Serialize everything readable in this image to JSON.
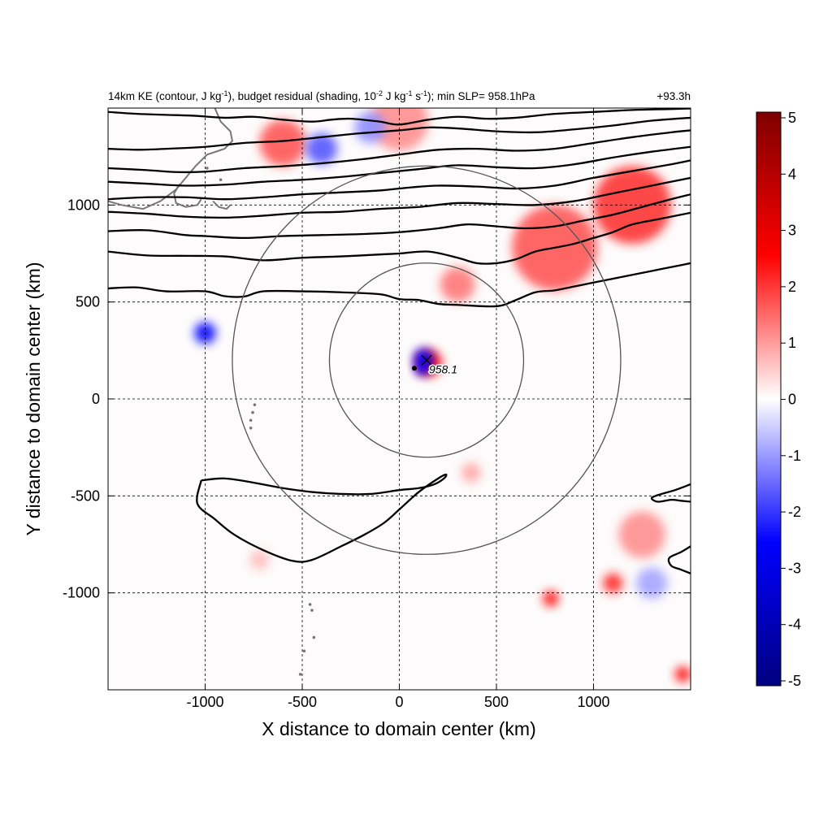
{
  "chart_data": {
    "type": "heatmap",
    "title": {
      "line_parts": [
        "14km KE (contour, J kg",
        "-1",
        "), budget residual (shading, 10",
        "-2",
        " J kg",
        "-1",
        " s",
        "-1",
        "); min SLP= 958.1hPa"
      ],
      "right": "+93.3h"
    },
    "xlabel": "X distance to domain center (km)",
    "ylabel": "Y distance to domain center (km)",
    "xlim": [
      -1500,
      1500
    ],
    "ylim": [
      -1500,
      1500
    ],
    "xticks": [
      -1000,
      -500,
      0,
      500,
      1000
    ],
    "yticks": [
      -1000,
      -500,
      0,
      500,
      1000
    ],
    "xtick_labels": [
      "-1000",
      "-500",
      "0",
      "500",
      "1000"
    ],
    "ytick_labels": [
      "-1000",
      "-500",
      "0",
      "500",
      "1000"
    ],
    "grid": true,
    "colorbar": {
      "range": [
        -5,
        5
      ],
      "ticks": [
        5,
        4,
        3,
        2,
        1,
        0,
        -1,
        -2,
        -3,
        -4,
        -5
      ],
      "tick_labels": [
        "5",
        "4",
        "3",
        "2",
        "1",
        "0",
        "-1",
        "-2",
        "-3",
        "-4",
        "-5"
      ],
      "colors": [
        "#00007f",
        "#0000ff",
        "#ffffff",
        "#ff0000",
        "#7f0000"
      ]
    },
    "storm_center": {
      "x": 140,
      "y": 200,
      "label": "958.1"
    },
    "range_circles_km": [
      {
        "center": [
          140,
          200
        ],
        "radius": 500
      },
      {
        "center": [
          140,
          200
        ],
        "radius": 1000
      }
    ],
    "ke_contours": [
      {
        "points": [
          [
            -1500,
            570
          ],
          [
            -1350,
            575
          ],
          [
            -1200,
            555
          ],
          [
            -1000,
            555
          ],
          [
            -900,
            530
          ],
          [
            -800,
            528
          ],
          [
            -700,
            555
          ],
          [
            -500,
            555
          ],
          [
            -300,
            550
          ],
          [
            -100,
            540
          ],
          [
            0,
            515
          ],
          [
            100,
            510
          ],
          [
            200,
            490
          ],
          [
            300,
            485
          ],
          [
            500,
            478
          ],
          [
            600,
            510
          ],
          [
            700,
            550
          ],
          [
            800,
            560
          ],
          [
            900,
            580
          ],
          [
            1000,
            600
          ],
          [
            1150,
            630
          ],
          [
            1300,
            660
          ],
          [
            1450,
            690
          ],
          [
            1500,
            700
          ]
        ]
      },
      {
        "points": [
          [
            -1500,
            760
          ],
          [
            -1300,
            740
          ],
          [
            -1100,
            738
          ],
          [
            -900,
            735
          ],
          [
            -700,
            715
          ],
          [
            -500,
            728
          ],
          [
            -300,
            735
          ],
          [
            -100,
            745
          ],
          [
            0,
            750
          ],
          [
            150,
            760
          ],
          [
            300,
            728
          ],
          [
            400,
            700
          ],
          [
            500,
            700
          ],
          [
            600,
            720
          ],
          [
            700,
            760
          ],
          [
            800,
            780
          ],
          [
            900,
            800
          ],
          [
            1000,
            830
          ],
          [
            1100,
            860
          ],
          [
            1200,
            900
          ],
          [
            1350,
            930
          ],
          [
            1500,
            960
          ]
        ]
      },
      {
        "points": [
          [
            -1500,
            865
          ],
          [
            -1300,
            870
          ],
          [
            -1100,
            845
          ],
          [
            -1000,
            840
          ],
          [
            -800,
            830
          ],
          [
            -600,
            840
          ],
          [
            -400,
            845
          ],
          [
            -200,
            850
          ],
          [
            0,
            860
          ],
          [
            200,
            880
          ],
          [
            350,
            900
          ],
          [
            500,
            890
          ],
          [
            650,
            880
          ],
          [
            800,
            890
          ],
          [
            950,
            920
          ],
          [
            1100,
            950
          ],
          [
            1250,
            990
          ],
          [
            1400,
            1030
          ],
          [
            1500,
            1055
          ]
        ]
      },
      {
        "points": [
          [
            -1500,
            965
          ],
          [
            -1300,
            955
          ],
          [
            -1100,
            940
          ],
          [
            -900,
            935
          ],
          [
            -700,
            945
          ],
          [
            -500,
            960
          ],
          [
            -300,
            965
          ],
          [
            -100,
            980
          ],
          [
            100,
            990
          ],
          [
            300,
            1010
          ],
          [
            500,
            1005
          ],
          [
            700,
            1000
          ],
          [
            900,
            1020
          ],
          [
            1100,
            1060
          ],
          [
            1300,
            1100
          ],
          [
            1500,
            1140
          ]
        ]
      },
      {
        "points": [
          [
            -1500,
            1030
          ],
          [
            -1300,
            1040
          ],
          [
            -1100,
            1040
          ],
          [
            -900,
            1030
          ],
          [
            -700,
            1040
          ],
          [
            -500,
            1055
          ],
          [
            -300,
            1065
          ],
          [
            -100,
            1075
          ],
          [
            50,
            1090
          ],
          [
            200,
            1100
          ],
          [
            400,
            1095
          ],
          [
            600,
            1085
          ],
          [
            800,
            1100
          ],
          [
            1000,
            1140
          ],
          [
            1200,
            1175
          ],
          [
            1400,
            1210
          ],
          [
            1500,
            1230
          ]
        ]
      },
      {
        "points": [
          [
            -1500,
            1120
          ],
          [
            -1300,
            1110
          ],
          [
            -1100,
            1100
          ],
          [
            -900,
            1105
          ],
          [
            -700,
            1120
          ],
          [
            -500,
            1130
          ],
          [
            -300,
            1145
          ],
          [
            -100,
            1165
          ],
          [
            100,
            1185
          ],
          [
            300,
            1205
          ],
          [
            500,
            1195
          ],
          [
            700,
            1190
          ],
          [
            900,
            1210
          ],
          [
            1100,
            1245
          ],
          [
            1300,
            1275
          ],
          [
            1500,
            1300
          ]
        ]
      },
      {
        "points": [
          [
            -1500,
            1190
          ],
          [
            -1300,
            1180
          ],
          [
            -1150,
            1170
          ],
          [
            -1000,
            1172
          ],
          [
            -800,
            1190
          ],
          [
            -600,
            1200
          ],
          [
            -400,
            1215
          ],
          [
            -200,
            1235
          ],
          [
            0,
            1260
          ],
          [
            200,
            1285
          ],
          [
            400,
            1290
          ],
          [
            600,
            1280
          ],
          [
            800,
            1290
          ],
          [
            1000,
            1320
          ],
          [
            1200,
            1350
          ],
          [
            1400,
            1375
          ],
          [
            1500,
            1385
          ]
        ]
      },
      {
        "points": [
          [
            -1500,
            1290
          ],
          [
            -1350,
            1285
          ],
          [
            -1200,
            1290
          ],
          [
            -1000,
            1300
          ],
          [
            -800,
            1320
          ],
          [
            -600,
            1330
          ],
          [
            -400,
            1350
          ],
          [
            -200,
            1370
          ],
          [
            0,
            1385
          ],
          [
            150,
            1400
          ],
          [
            300,
            1395
          ],
          [
            500,
            1380
          ],
          [
            700,
            1375
          ],
          [
            900,
            1390
          ],
          [
            1100,
            1410
          ],
          [
            1300,
            1435
          ],
          [
            1500,
            1450
          ]
        ]
      },
      {
        "points": [
          [
            -1500,
            1480
          ],
          [
            -1350,
            1470
          ],
          [
            -1200,
            1465
          ],
          [
            -1050,
            1460
          ],
          [
            -900,
            1450
          ],
          [
            -750,
            1455
          ],
          [
            -600,
            1440
          ],
          [
            -450,
            1430
          ],
          [
            -350,
            1440
          ],
          [
            -250,
            1445
          ],
          [
            -100,
            1430
          ],
          [
            0,
            1415
          ],
          [
            150,
            1440
          ],
          [
            300,
            1455
          ],
          [
            450,
            1445
          ],
          [
            600,
            1450
          ],
          [
            800,
            1470
          ],
          [
            1000,
            1480
          ],
          [
            1200,
            1490
          ],
          [
            1400,
            1495
          ],
          [
            1500,
            1498
          ]
        ]
      },
      {
        "points": [
          [
            -1020,
            -420
          ],
          [
            -900,
            -410
          ],
          [
            -760,
            -430
          ],
          [
            -600,
            -460
          ],
          [
            -450,
            -480
          ],
          [
            -300,
            -490
          ],
          [
            -150,
            -490
          ],
          [
            0,
            -470
          ],
          [
            100,
            -460
          ],
          [
            180,
            -440
          ],
          [
            230,
            -410
          ],
          [
            240,
            -390
          ],
          [
            200,
            -410
          ],
          [
            100,
            -480
          ],
          [
            0,
            -570
          ],
          [
            -80,
            -640
          ],
          [
            -180,
            -700
          ],
          [
            -300,
            -760
          ],
          [
            -450,
            -830
          ],
          [
            -550,
            -835
          ],
          [
            -700,
            -780
          ],
          [
            -850,
            -700
          ],
          [
            -950,
            -620
          ],
          [
            -1040,
            -540
          ],
          [
            -1020,
            -420
          ]
        ]
      },
      {
        "points": [
          [
            1500,
            -440
          ],
          [
            1420,
            -470
          ],
          [
            1350,
            -490
          ],
          [
            1300,
            -510
          ],
          [
            1330,
            -530
          ],
          [
            1400,
            -520
          ],
          [
            1450,
            -525
          ],
          [
            1500,
            -530
          ]
        ]
      },
      {
        "points": [
          [
            1500,
            -760
          ],
          [
            1450,
            -790
          ],
          [
            1390,
            -820
          ],
          [
            1400,
            -860
          ],
          [
            1450,
            -880
          ],
          [
            1500,
            -900
          ]
        ]
      }
    ],
    "residual_features": [
      {
        "x": 150,
        "y": 185,
        "r": 70,
        "value": 3.5
      },
      {
        "x": 125,
        "y": 210,
        "r": 50,
        "value": -3.5
      },
      {
        "x": 120,
        "y": 160,
        "r": 40,
        "value": -2.5
      },
      {
        "x": -1000,
        "y": 340,
        "r": 55,
        "value": -3
      },
      {
        "x": 300,
        "y": 590,
        "r": 90,
        "value": 1.2
      },
      {
        "x": 800,
        "y": 780,
        "r": 220,
        "value": 1.5
      },
      {
        "x": 1200,
        "y": 1000,
        "r": 200,
        "value": 1.8
      },
      {
        "x": -600,
        "y": 1320,
        "r": 120,
        "value": 1.5
      },
      {
        "x": -400,
        "y": 1290,
        "r": 80,
        "value": -1.5
      },
      {
        "x": 0,
        "y": 1430,
        "r": 150,
        "value": 1.0
      },
      {
        "x": -150,
        "y": 1400,
        "r": 80,
        "value": -1.0
      },
      {
        "x": 1100,
        "y": -950,
        "r": 50,
        "value": 2
      },
      {
        "x": 780,
        "y": -1030,
        "r": 40,
        "value": 2.5
      },
      {
        "x": 1460,
        "y": -1420,
        "r": 40,
        "value": 3
      },
      {
        "x": 1250,
        "y": -700,
        "r": 120,
        "value": 1.0
      },
      {
        "x": 1300,
        "y": -950,
        "r": 80,
        "value": -0.8
      },
      {
        "x": 370,
        "y": -380,
        "r": 50,
        "value": 0.8
      },
      {
        "x": -720,
        "y": -830,
        "r": 50,
        "value": 0.6
      }
    ],
    "coastlines": [
      {
        "points": [
          [
            -950,
            1500
          ],
          [
            -920,
            1430
          ],
          [
            -870,
            1380
          ],
          [
            -860,
            1330
          ],
          [
            -900,
            1290
          ],
          [
            -990,
            1260
          ],
          [
            -1050,
            1200
          ],
          [
            -1100,
            1140
          ],
          [
            -1150,
            1080
          ],
          [
            -1230,
            1020
          ],
          [
            -1320,
            980
          ],
          [
            -1430,
            1000
          ],
          [
            -1500,
            1020
          ]
        ]
      },
      {
        "points": [
          [
            -1130,
            1110
          ],
          [
            -1160,
            1060
          ],
          [
            -1150,
            1010
          ],
          [
            -1100,
            990
          ],
          [
            -1040,
            1000
          ],
          [
            -1020,
            1030
          ]
        ]
      },
      {
        "points": [
          [
            -960,
            1020
          ],
          [
            -930,
            990
          ],
          [
            -890,
            980
          ],
          [
            -870,
            1000
          ]
        ]
      }
    ],
    "islands": [
      {
        "x": -745,
        "y": -30
      },
      {
        "x": -755,
        "y": -70
      },
      {
        "x": -765,
        "y": -110
      },
      {
        "x": -765,
        "y": -150
      },
      {
        "x": -440,
        "y": -1230
      },
      {
        "x": -490,
        "y": -1300
      },
      {
        "x": -510,
        "y": -1420
      },
      {
        "x": -450,
        "y": -1090
      },
      {
        "x": -460,
        "y": -1060
      },
      {
        "x": -920,
        "y": 1130
      },
      {
        "x": -990,
        "y": 1190
      }
    ]
  }
}
